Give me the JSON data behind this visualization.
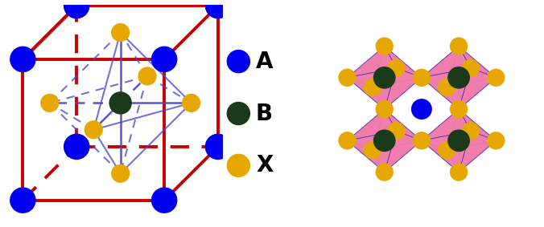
{
  "bg_color": "#ffffff",
  "A_color": "#0000ee",
  "B_color": "#1a3a1a",
  "X_color": "#e6a800",
  "cube_edge_color": "#cc0000",
  "bond_color": "#4444cc",
  "pink_color": "#f080b0",
  "pink_edge_color": "#8844aa",
  "legend_A_label": "A",
  "legend_B_label": "B",
  "legend_X_label": "X",
  "cube_s": 6.5,
  "cube_ox": 0.8,
  "cube_oy": 1.0,
  "cube_zx": 0.38,
  "cube_zy": 0.38
}
